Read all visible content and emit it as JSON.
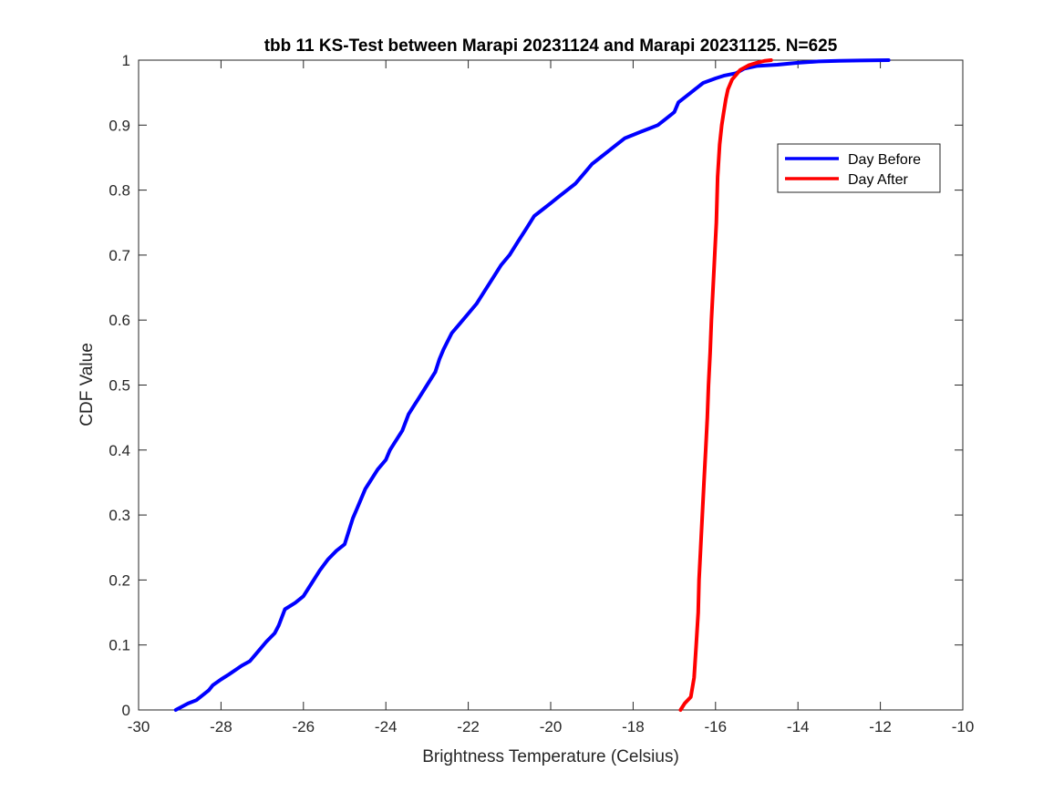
{
  "chart_data": {
    "type": "line",
    "title": "tbb 11 KS-Test between Marapi 20231124 and Marapi 20231125. N=625",
    "xlabel": "Brightness Temperature (Celsius)",
    "ylabel": "CDF Value",
    "xlim": [
      -30,
      -10
    ],
    "ylim": [
      0,
      1
    ],
    "xticks": [
      -30,
      -28,
      -26,
      -24,
      -22,
      -20,
      -18,
      -16,
      -14,
      -12,
      -10
    ],
    "yticks": [
      0,
      0.1,
      0.2,
      0.3,
      0.4,
      0.5,
      0.6,
      0.7,
      0.8,
      0.9,
      1
    ],
    "xtick_labels": [
      "-30",
      "-28",
      "-26",
      "-24",
      "-22",
      "-20",
      "-18",
      "-16",
      "-14",
      "-12",
      "-10"
    ],
    "ytick_labels": [
      "0",
      "0.1",
      "0.2",
      "0.3",
      "0.4",
      "0.5",
      "0.6",
      "0.7",
      "0.8",
      "0.9",
      "1"
    ],
    "grid": false,
    "legend_position": "top-right",
    "series": [
      {
        "name": "Day Before",
        "color": "#0000ff",
        "x": [
          -29.1,
          -28.8,
          -28.6,
          -28.3,
          -28.2,
          -28.0,
          -27.8,
          -27.5,
          -27.3,
          -27.1,
          -26.9,
          -26.7,
          -26.6,
          -26.45,
          -26.2,
          -26.0,
          -25.8,
          -25.6,
          -25.4,
          -25.2,
          -25.0,
          -24.8,
          -24.7,
          -24.6,
          -24.5,
          -24.4,
          -24.2,
          -24.0,
          -23.9,
          -23.8,
          -23.6,
          -23.45,
          -23.3,
          -23.2,
          -23.0,
          -22.8,
          -22.7,
          -22.6,
          -22.4,
          -22.2,
          -22.0,
          -21.8,
          -21.6,
          -21.4,
          -21.2,
          -21.0,
          -20.8,
          -20.6,
          -20.4,
          -20.2,
          -20.0,
          -19.8,
          -19.6,
          -19.4,
          -19.2,
          -19.0,
          -18.8,
          -18.6,
          -18.4,
          -18.2,
          -18.0,
          -17.8,
          -17.6,
          -17.4,
          -17.2,
          -17.0,
          -16.9,
          -16.7,
          -16.5,
          -16.3,
          -16.0,
          -15.8,
          -15.5,
          -15.3,
          -15.0,
          -14.5,
          -14.0,
          -13.5,
          -13.0,
          -12.5,
          -11.8
        ],
        "y": [
          0.0,
          0.01,
          0.015,
          0.03,
          0.038,
          0.047,
          0.055,
          0.068,
          0.075,
          0.09,
          0.105,
          0.118,
          0.13,
          0.155,
          0.165,
          0.175,
          0.195,
          0.215,
          0.232,
          0.245,
          0.255,
          0.295,
          0.31,
          0.325,
          0.34,
          0.35,
          0.37,
          0.385,
          0.4,
          0.41,
          0.43,
          0.455,
          0.47,
          0.48,
          0.5,
          0.52,
          0.54,
          0.555,
          0.58,
          0.595,
          0.61,
          0.625,
          0.645,
          0.665,
          0.685,
          0.7,
          0.72,
          0.74,
          0.76,
          0.77,
          0.78,
          0.79,
          0.8,
          0.81,
          0.825,
          0.84,
          0.85,
          0.86,
          0.87,
          0.88,
          0.885,
          0.89,
          0.895,
          0.9,
          0.91,
          0.92,
          0.935,
          0.945,
          0.955,
          0.965,
          0.972,
          0.976,
          0.98,
          0.987,
          0.991,
          0.993,
          0.996,
          0.998,
          0.999,
          0.9995,
          1.0
        ]
      },
      {
        "name": "Day After",
        "color": "#ff0000",
        "x": [
          -16.85,
          -16.75,
          -16.6,
          -16.52,
          -16.47,
          -16.42,
          -16.4,
          -16.36,
          -16.32,
          -16.28,
          -16.24,
          -16.2,
          -16.17,
          -16.13,
          -16.1,
          -16.06,
          -16.02,
          -15.98,
          -15.95,
          -15.9,
          -15.85,
          -15.8,
          -15.75,
          -15.7,
          -15.6,
          -15.4,
          -15.2,
          -15.0,
          -14.8,
          -14.65
        ],
        "y": [
          0.0,
          0.01,
          0.02,
          0.05,
          0.1,
          0.15,
          0.2,
          0.25,
          0.3,
          0.35,
          0.4,
          0.45,
          0.5,
          0.55,
          0.6,
          0.65,
          0.7,
          0.75,
          0.82,
          0.87,
          0.9,
          0.92,
          0.94,
          0.955,
          0.97,
          0.985,
          0.992,
          0.996,
          0.999,
          1.0
        ]
      }
    ]
  }
}
